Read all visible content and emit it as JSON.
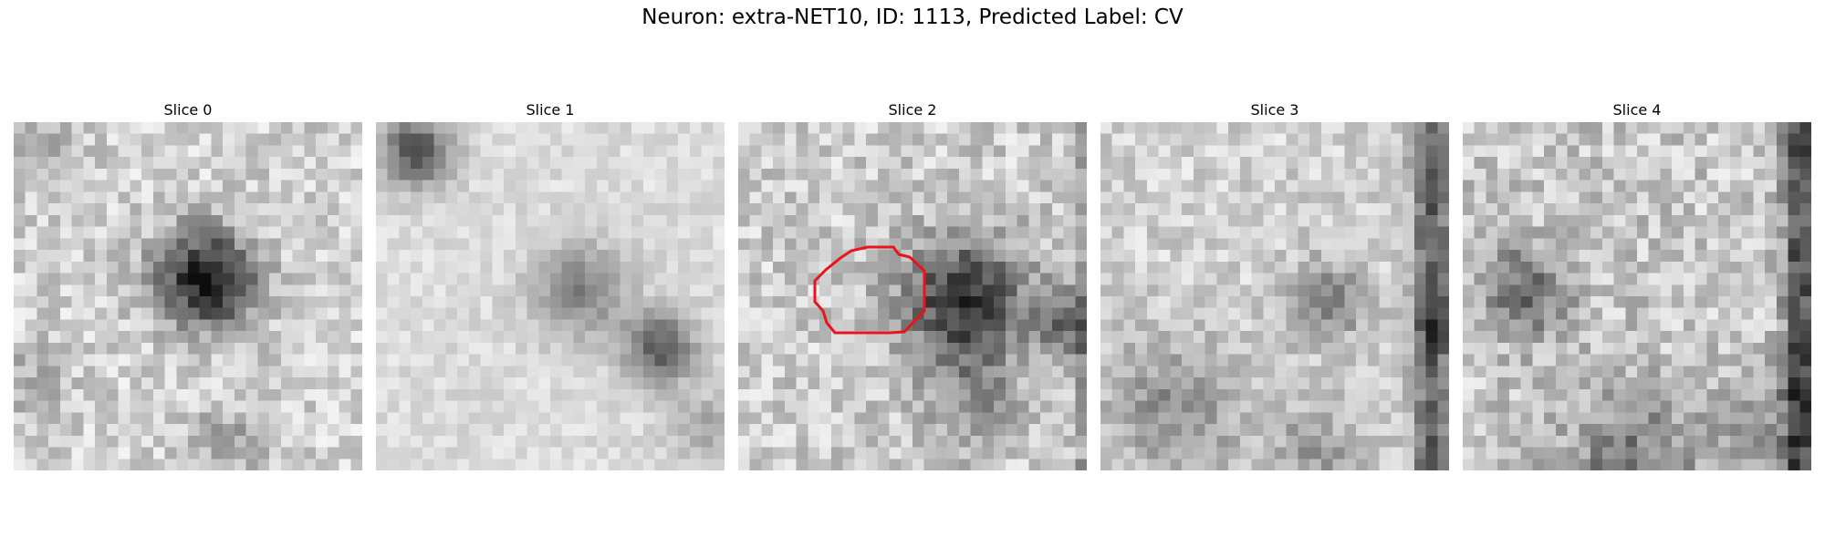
{
  "figure": {
    "title": "Neuron: extra-NET10, ID: 1113, Predicted Label: CV"
  },
  "slices": [
    {
      "label": "Slice 0"
    },
    {
      "label": "Slice 1"
    },
    {
      "label": "Slice 2"
    },
    {
      "label": "Slice 3"
    },
    {
      "label": "Slice 4"
    }
  ],
  "colors": {
    "contour": "#e8141a",
    "colormap": "grayscale"
  },
  "contour_slice": "Slice 2"
}
